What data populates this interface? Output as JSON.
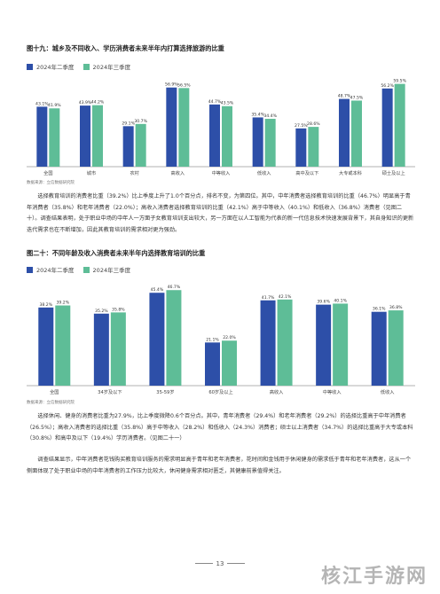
{
  "colors": {
    "series1": "#2d4fa8",
    "series2": "#5ebd97",
    "axis": "#999999"
  },
  "chart_data": [
    {
      "type": "bar",
      "title": "图十九：城乡及不同收入、学历消费者未来半年内打算选择旅游的比重",
      "categories": [
        "全国",
        "城市",
        "农村",
        "高收入",
        "中等收入",
        "低收入",
        "高中及以下",
        "大专或本科",
        "硕士及以上"
      ],
      "series": [
        {
          "name": "2024年二季度",
          "values": [
            43.1,
            43.9,
            29.1,
            56.9,
            44.7,
            35.4,
            27.5,
            48.7,
            56.2
          ],
          "labels": [
            "43.1%",
            "43.9%",
            "29.1%",
            "56.9%",
            "44.7%",
            "35.4%",
            "27.5%",
            "48.7%",
            "56.2%"
          ]
        },
        {
          "name": "2024年三季度",
          "values": [
            41.9,
            44.2,
            30.7,
            56.5,
            43.5,
            34.4,
            28.6,
            47.5,
            59.5
          ],
          "labels": [
            "41.9%",
            "44.2%",
            "30.7%",
            "56.5%",
            "43.5%",
            "34.4%",
            "28.6%",
            "47.5%",
            "59.5%"
          ]
        }
      ],
      "ylim": [
        0,
        65
      ],
      "source": "数据来源：立信数据研究院"
    },
    {
      "type": "bar",
      "title": "图二十：不同年龄及收入消费者未来半年内选择教育培训的比重",
      "categories": [
        "全国",
        "34岁及以下",
        "35-59岁",
        "60岁及以上",
        "高收入",
        "中等收入",
        "低收入"
      ],
      "series": [
        {
          "name": "2024年二季度",
          "values": [
            38.2,
            35.2,
            45.4,
            21.1,
            41.7,
            39.6,
            36.1
          ],
          "labels": [
            "38.2%",
            "35.2%",
            "45.4%",
            "21.1%",
            "41.7%",
            "39.6%",
            "36.1%"
          ]
        },
        {
          "name": "2024年三季度",
          "values": [
            39.2,
            35.8,
            46.7,
            22.0,
            42.1,
            40.1,
            36.8
          ],
          "labels": [
            "39.2%",
            "35.8%",
            "46.7%",
            "22.0%",
            "42.1%",
            "40.1%",
            "36.8%"
          ]
        }
      ],
      "ylim": [
        0,
        52
      ],
      "source": "数据来源：立信数据研究院"
    }
  ],
  "paragraphs": {
    "p1": "选择教育培训的消费者比重（39.2%）比上季度上升了1.0个百分点，排名不变，为第四位。其中，中年消费者选择教育培训的比重（46.7%）明显高于青年消费者（35.8%）和老年消费者（22.0%）；高收入消费者选择教育培训的比重（42.1%）高于中等收入（40.1%）和低收入（36.8%）消费者（见图二十）。调查结果表明，处于职业中场的中年人一方面子女教育培训支出较大，另一方面在以人工智能为代表的新一代信息技术快速发展背景下，其自身知识的更新迭代需求也在不断增加，因此其教育培训的需求相对更为强劲。",
    "p2": "选择休闲、健身的消费者比重为27.9%，比上季度微降0.6个百分点。其中，青年消费者（29.4%）和老年消费者（29.2%）的选择比重高于中年消费者（26.5%）；高收入消费者的选择比重（35.8%）高于中等收入（28.2%）和低收入（24.3%）消费者；硕士以上消费者（34.7%）的选择比重高于大专或本科（30.8%）和高中及以下（19.4%）学历消费者。（见图二十一）",
    "p3": "调查结果显示，中年消费者花钱购买教育培训服务的需求明显高于青年和老年消费者，花时间和金钱用于休闲健身的需求低于青年和老年消费者，这从一个侧面体现了处于职业中场的中年消费者的工作压力比较大，休闲健身需求相对匮乏，其健康前景值得关注。"
  },
  "page_number": "13",
  "watermark": "核江手游网"
}
